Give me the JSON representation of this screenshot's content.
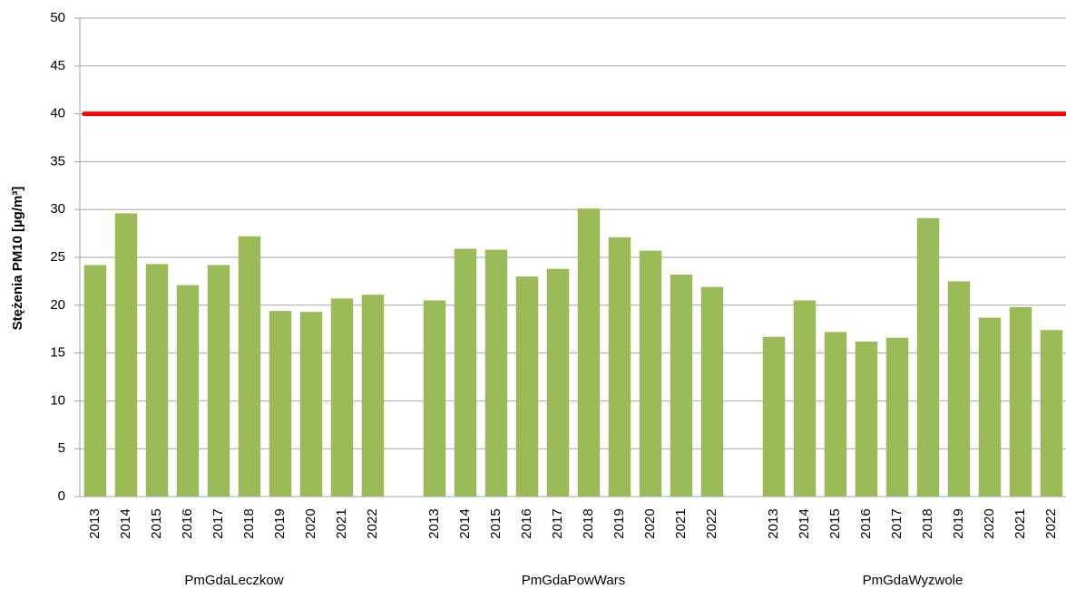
{
  "chart_data": {
    "type": "bar",
    "y_label": "Stężenia  PM10 [µg/m³]",
    "groups": [
      {
        "name": "PmGdaLeczkow",
        "categories": [
          "2013",
          "2014",
          "2015",
          "2016",
          "2017",
          "2018",
          "2019",
          "2020",
          "2021",
          "2022"
        ],
        "values": [
          24.2,
          29.6,
          24.3,
          22.1,
          24.2,
          27.2,
          19.4,
          19.3,
          20.7,
          21.1
        ]
      },
      {
        "name": "PmGdaPowWars",
        "categories": [
          "2013",
          "2014",
          "2015",
          "2016",
          "2017",
          "2018",
          "2019",
          "2020",
          "2021",
          "2022"
        ],
        "values": [
          20.5,
          25.9,
          25.8,
          23.0,
          23.8,
          30.1,
          27.1,
          25.7,
          23.2,
          21.9
        ]
      },
      {
        "name": "PmGdaWyzwole",
        "categories": [
          "2013",
          "2014",
          "2015",
          "2016",
          "2017",
          "2018",
          "2019",
          "2020",
          "2021",
          "2022"
        ],
        "values": [
          16.7,
          20.5,
          17.2,
          16.2,
          16.6,
          29.1,
          22.5,
          18.7,
          19.8,
          17.4
        ]
      }
    ],
    "color": "#9bbb59",
    "threshold": 40,
    "threshold_color": "#ff0000",
    "ylim": [
      0,
      50
    ],
    "yticks": [
      0,
      5,
      10,
      15,
      20,
      25,
      30,
      35,
      40,
      45,
      50
    ],
    "grid": true
  }
}
